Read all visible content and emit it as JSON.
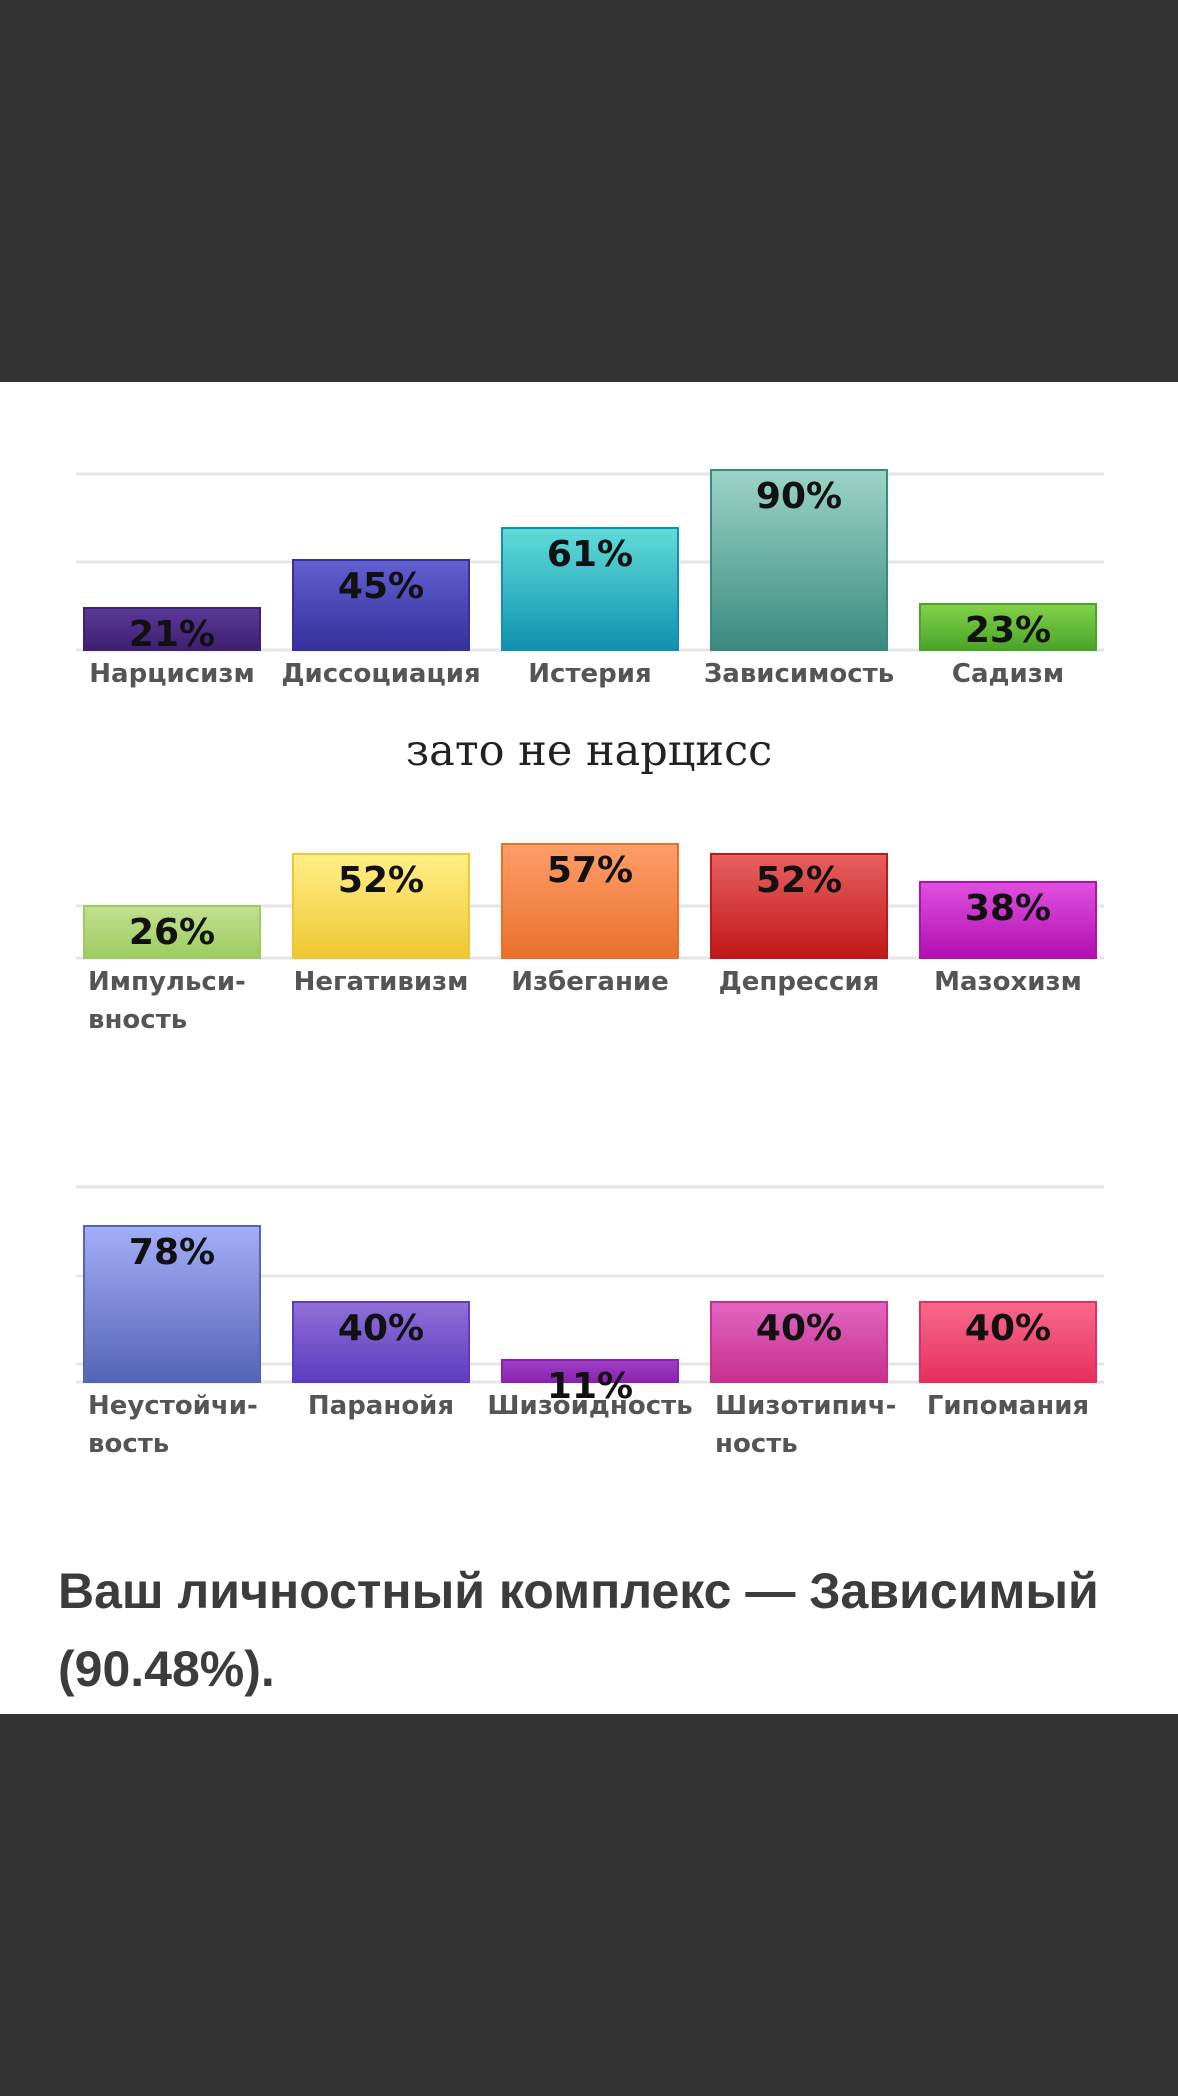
{
  "caption": "зато не нарцисс",
  "result_text": "Ваш личностный комплекс — Зависимый (90.48%).",
  "chart_data": [
    {
      "type": "bar",
      "categories": [
        [
          "Нарцисизм"
        ],
        [
          "Диссоциация"
        ],
        [
          "Истерия"
        ],
        [
          "Зависимость"
        ],
        [
          "Садизм"
        ]
      ],
      "values": [
        21,
        45,
        61,
        90,
        23
      ],
      "labels": [
        "21%",
        "45%",
        "61%",
        "90%",
        "23%"
      ],
      "colors": [
        [
          "#5a3a98",
          "#3e1f70"
        ],
        [
          "#6260d2",
          "#35309a"
        ],
        [
          "#60dcd8",
          "#1190b0"
        ],
        [
          "#9cd4c6",
          "#3a8a7e"
        ],
        [
          "#82d24a",
          "#4aa428"
        ]
      ],
      "ylim": [
        0,
        100
      ],
      "grid": true
    },
    {
      "type": "bar",
      "categories": [
        [
          "Импульси-",
          "вность"
        ],
        [
          "Негативизм"
        ],
        [
          "Избегание"
        ],
        [
          "Депрессия"
        ],
        [
          "Мазохизм"
        ]
      ],
      "values": [
        26,
        52,
        57,
        52,
        38
      ],
      "labels": [
        "26%",
        "52%",
        "57%",
        "52%",
        "38%"
      ],
      "colors": [
        [
          "#c2e090",
          "#9ccc60"
        ],
        [
          "#fff088",
          "#f0c632"
        ],
        [
          "#ff9e6a",
          "#e8702a"
        ],
        [
          "#e86060",
          "#c01818"
        ],
        [
          "#e050e0",
          "#b010b0"
        ]
      ],
      "ylim": [
        0,
        100
      ],
      "grid": true
    },
    {
      "type": "bar",
      "categories": [
        [
          "Неустойчи-",
          "вость"
        ],
        [
          "Паранойя"
        ],
        [
          "Шизоидность"
        ],
        [
          "Шизотипич-",
          "ность"
        ],
        [
          "Гипомания"
        ]
      ],
      "values": [
        78,
        40,
        11,
        40,
        40
      ],
      "labels": [
        "78%",
        "40%",
        "11%",
        "40%",
        "40%"
      ],
      "colors": [
        [
          "#a2aef8",
          "#5464b6"
        ],
        [
          "#9070d8",
          "#5c3cc0"
        ],
        [
          "#a040c8",
          "#8a22b0"
        ],
        [
          "#e066c0",
          "#c8308e"
        ],
        [
          "#f86a8c",
          "#e62e5c"
        ]
      ],
      "ylim": [
        0,
        100
      ],
      "grid": true
    }
  ]
}
